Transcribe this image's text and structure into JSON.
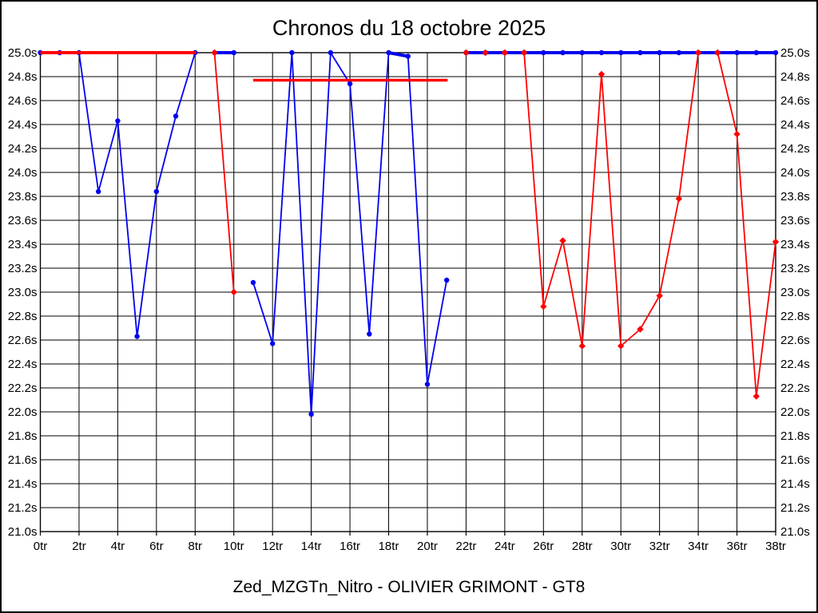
{
  "page": {
    "background": "#ffffff",
    "frame_color": "#000000"
  },
  "chart_data": {
    "type": "line",
    "title": "Chronos du 18 octobre 2025",
    "footer": "Zed_MZGTn_Nitro - OLIVIER GRIMONT - GT8",
    "x_unit": "tr",
    "y_unit": "s",
    "xlim": [
      0,
      38
    ],
    "ylim": [
      21.0,
      25.0
    ],
    "y_tick_step": 0.2,
    "grid": true,
    "x_tick_labels": [
      "0tr",
      "2tr",
      "4tr",
      "6tr",
      "8tr",
      "10tr",
      "12tr",
      "14tr",
      "16tr",
      "18tr",
      "20tr",
      "22tr",
      "24tr",
      "26tr",
      "28tr",
      "30tr",
      "32tr",
      "34tr",
      "36tr",
      "38tr"
    ],
    "y_tick_labels": [
      "25.0s",
      "24.8s",
      "24.6s",
      "24.4s",
      "24.2s",
      "24.0s",
      "23.8s",
      "23.6s",
      "23.4s",
      "23.2s",
      "23.0s",
      "22.8s",
      "22.6s",
      "22.4s",
      "22.2s",
      "22.0s",
      "21.8s",
      "21.6s",
      "21.4s",
      "21.2s",
      "21.0s"
    ],
    "series": [
      {
        "name": "blue-driver",
        "color": "#0000f0",
        "marker": "circle",
        "segments": [
          [
            [
              0,
              25.0
            ],
            [
              1,
              25.0
            ],
            [
              2,
              25.0
            ],
            [
              3,
              23.84
            ],
            [
              4,
              24.43
            ],
            [
              5,
              22.63
            ],
            [
              6,
              23.84
            ],
            [
              7,
              24.47
            ],
            [
              8,
              25.0
            ]
          ],
          [
            [
              9,
              25.0
            ],
            [
              10,
              25.0
            ]
          ],
          [
            [
              11,
              23.08
            ],
            [
              12,
              22.57
            ],
            [
              13,
              25.0
            ],
            [
              14,
              21.98
            ],
            [
              15,
              25.0
            ],
            [
              16,
              24.74
            ],
            [
              17,
              22.65
            ],
            [
              18,
              25.0
            ],
            [
              19,
              24.97
            ],
            [
              20,
              22.23
            ],
            [
              21,
              23.1
            ]
          ],
          [
            [
              22,
              25.0
            ],
            [
              23,
              25.0
            ],
            [
              24,
              25.0
            ],
            [
              25,
              25.0
            ],
            [
              26,
              25.0
            ],
            [
              27,
              25.0
            ],
            [
              28,
              25.0
            ],
            [
              29,
              25.0
            ],
            [
              30,
              25.0
            ],
            [
              31,
              25.0
            ],
            [
              32,
              25.0
            ],
            [
              33,
              25.0
            ],
            [
              34,
              25.0
            ],
            [
              35,
              25.0
            ],
            [
              36,
              25.0
            ],
            [
              37,
              25.0
            ],
            [
              38,
              25.0
            ]
          ]
        ],
        "isolated_points": [],
        "flat_lines": []
      },
      {
        "name": "red-driver",
        "color": "#ff0000",
        "marker": "diamond",
        "segments": [
          [
            [
              9,
              25.0
            ],
            [
              10,
              23.0
            ]
          ],
          [
            [
              25,
              25.0
            ],
            [
              26,
              22.88
            ],
            [
              27,
              23.43
            ],
            [
              28,
              22.55
            ],
            [
              29,
              24.82
            ],
            [
              30,
              22.55
            ],
            [
              31,
              22.69
            ],
            [
              32,
              22.97
            ],
            [
              33,
              23.78
            ],
            [
              34,
              25.0
            ]
          ],
          [
            [
              35,
              25.0
            ],
            [
              36,
              24.32
            ],
            [
              37,
              22.13
            ],
            [
              38,
              23.42
            ]
          ]
        ],
        "isolated_points": [
          [
            22,
            25.0
          ],
          [
            23,
            25.0
          ],
          [
            24,
            25.0
          ]
        ],
        "flat_lines": [
          {
            "y": 25.0,
            "x1": 0,
            "x2": 8.05,
            "width": 4
          },
          {
            "y": 24.77,
            "x1": 11,
            "x2": 21.05,
            "width": 3.5
          }
        ]
      }
    ]
  }
}
